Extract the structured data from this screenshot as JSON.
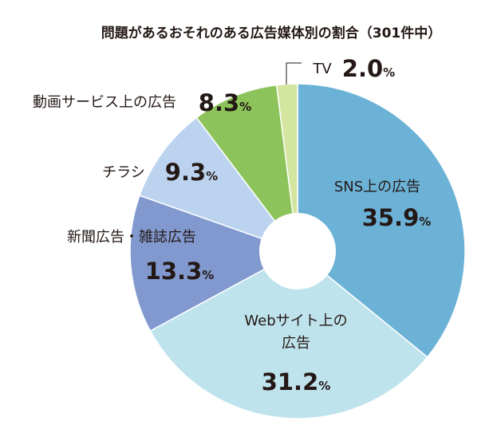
{
  "chart_data": {
    "type": "pie",
    "title": "問題があるおそれのある広告媒体別の割合（301件中）",
    "unit": "%",
    "slices": [
      {
        "label": "SNS上の広告",
        "value": 35.9,
        "color": "#6cb2d6"
      },
      {
        "label": "Webサイト上の広告",
        "value": 31.2,
        "color": "#bfe3ec"
      },
      {
        "label": "新聞広告・雑誌広告",
        "value": 13.3,
        "color": "#8199cf"
      },
      {
        "label": "チラシ",
        "value": 9.3,
        "color": "#bcd3ef"
      },
      {
        "label": "動画サービス上の広告",
        "value": 8.3,
        "color": "#8cc35a"
      },
      {
        "label": "TV",
        "value": 2.0,
        "color": "#d4e5a0"
      }
    ]
  }
}
